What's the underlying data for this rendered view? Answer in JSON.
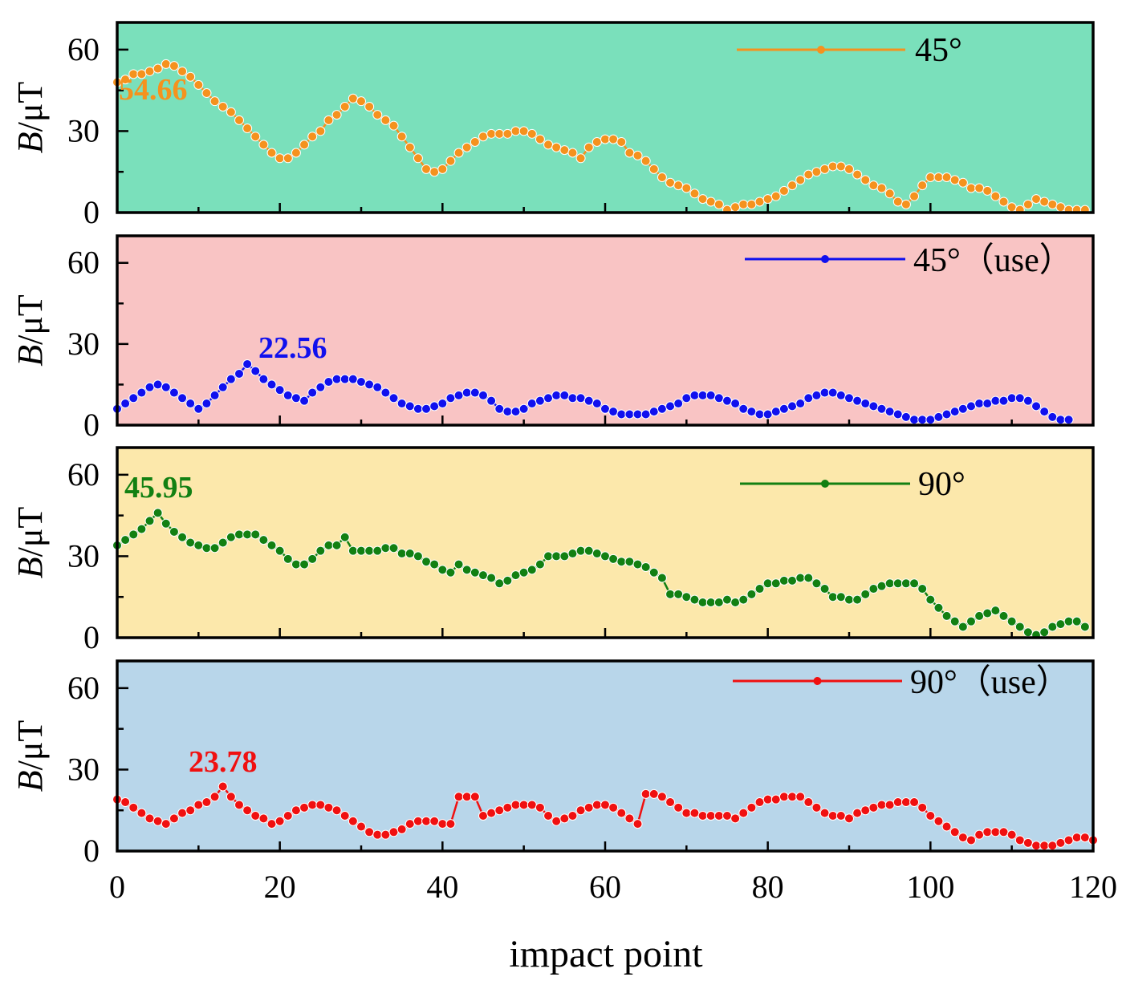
{
  "chart_data": {
    "type": "line",
    "xlabel": "impact point",
    "xlim": [
      0,
      120
    ],
    "xticks": [
      0,
      20,
      40,
      60,
      80,
      100,
      120
    ],
    "ylim": [
      0,
      70
    ],
    "yticks": [
      0,
      30,
      60
    ],
    "panels": [
      {
        "name": "45°",
        "ylabel_var": "B",
        "ylabel_unit": "/μT",
        "color": "#f5921e",
        "background": "#7ae0bb",
        "peak_label": "54.66",
        "values": [
          48,
          49,
          51,
          51,
          52,
          53,
          54.66,
          54,
          52,
          50,
          47,
          44,
          41,
          39,
          37,
          34,
          31,
          28,
          25,
          22,
          20,
          20,
          22,
          25,
          28,
          30,
          34,
          36,
          39,
          42,
          41,
          39,
          36,
          34,
          32,
          28,
          24,
          20,
          16,
          15,
          16,
          19,
          22,
          24,
          26,
          28,
          29,
          29,
          29,
          30,
          30,
          29,
          27,
          25,
          24,
          23,
          22,
          20,
          24,
          26,
          27,
          27,
          26,
          22,
          21,
          19,
          16,
          13,
          11,
          10,
          9,
          7,
          5,
          4,
          3,
          1,
          2,
          3,
          3,
          4,
          5,
          6,
          8,
          10,
          12,
          14,
          15,
          16,
          17,
          17,
          16,
          14,
          12,
          10,
          9,
          7,
          4,
          3,
          6,
          10,
          13,
          13,
          13,
          12,
          11,
          9,
          9,
          8,
          6,
          4,
          2,
          1,
          3,
          5,
          4,
          3,
          2,
          1,
          1,
          1
        ]
      },
      {
        "name": "45°（use）",
        "ylabel_var": "B",
        "ylabel_unit": "/μT",
        "color": "#1010ee",
        "background": "#f9c4c4",
        "peak_label": "22.56",
        "values": [
          6,
          8,
          10,
          12,
          14,
          15,
          14,
          12,
          10,
          8,
          6,
          8,
          11,
          14,
          17,
          19,
          22.56,
          20,
          17,
          15,
          13,
          11,
          10,
          9,
          12,
          14,
          16,
          17,
          17,
          17,
          16,
          15,
          14,
          12,
          10,
          8,
          7,
          6,
          6,
          7,
          8,
          10,
          11,
          12,
          12,
          11,
          9,
          6,
          5,
          5,
          6,
          8,
          9,
          10,
          11,
          11,
          10,
          10,
          9,
          8,
          6,
          5,
          4,
          4,
          4,
          4,
          5,
          6,
          7,
          8,
          10,
          11,
          11,
          11,
          10,
          9,
          8,
          6,
          5,
          4,
          4,
          5,
          6,
          7,
          8,
          10,
          11,
          12,
          12,
          11,
          10,
          9,
          8,
          7,
          6,
          5,
          4,
          3,
          2,
          2,
          2,
          3,
          4,
          5,
          6,
          7,
          8,
          8,
          9,
          9,
          10,
          10,
          9,
          7,
          5,
          3,
          2,
          2
        ]
      },
      {
        "name": "90°",
        "ylabel_var": "B",
        "ylabel_unit": "/μT",
        "color": "#128012",
        "background": "#fce8ab",
        "peak_label": "45.95",
        "values": [
          34,
          36,
          38,
          40,
          43,
          45.95,
          42,
          39,
          37,
          35,
          34,
          33,
          33,
          35,
          37,
          38,
          38,
          38,
          36,
          34,
          32,
          29,
          27,
          27,
          29,
          32,
          34,
          34,
          37,
          32,
          32,
          32,
          32,
          33,
          33,
          31,
          31,
          30,
          28,
          27,
          25,
          24,
          27,
          25,
          24,
          23,
          22,
          20,
          21,
          23,
          24,
          25,
          27,
          30,
          30,
          30,
          31,
          32,
          32,
          31,
          30,
          29,
          28,
          28,
          27,
          26,
          24,
          22,
          16,
          16,
          15,
          14,
          13,
          13,
          13,
          14,
          13,
          14,
          16,
          18,
          20,
          20,
          21,
          21,
          22,
          22,
          20,
          18,
          15,
          15,
          14,
          14,
          16,
          18,
          19,
          20,
          20,
          20,
          20,
          18,
          14,
          11,
          8,
          6,
          4,
          6,
          8,
          9,
          10,
          8,
          6,
          4,
          2,
          1,
          2,
          4,
          5,
          6,
          6,
          4
        ]
      },
      {
        "name": "90°（use）",
        "ylabel_var": "B",
        "ylabel_unit": "/μT",
        "color": "#f01010",
        "background": "#b8d6ea",
        "peak_label": "23.78",
        "values": [
          19,
          18,
          16,
          14,
          12,
          11,
          10,
          12,
          14,
          15,
          17,
          18,
          20,
          23.78,
          20,
          17,
          15,
          13,
          12,
          10,
          11,
          13,
          15,
          16,
          17,
          17,
          16,
          15,
          13,
          11,
          9,
          7,
          6,
          6,
          7,
          8,
          10,
          11,
          11,
          11,
          10,
          10,
          20,
          20,
          20,
          13,
          14,
          15,
          16,
          17,
          17,
          17,
          16,
          13,
          11,
          12,
          13,
          15,
          16,
          17,
          17,
          16,
          14,
          12,
          10,
          21,
          21,
          20,
          18,
          16,
          14,
          14,
          13,
          13,
          13,
          13,
          12,
          14,
          16,
          18,
          19,
          19,
          20,
          20,
          20,
          18,
          16,
          14,
          13,
          13,
          12,
          14,
          15,
          16,
          17,
          17,
          18,
          18,
          18,
          16,
          13,
          11,
          9,
          7,
          5,
          4,
          6,
          7,
          7,
          7,
          6,
          4,
          3,
          2,
          2,
          2,
          3,
          4,
          5,
          5,
          4
        ]
      }
    ]
  }
}
